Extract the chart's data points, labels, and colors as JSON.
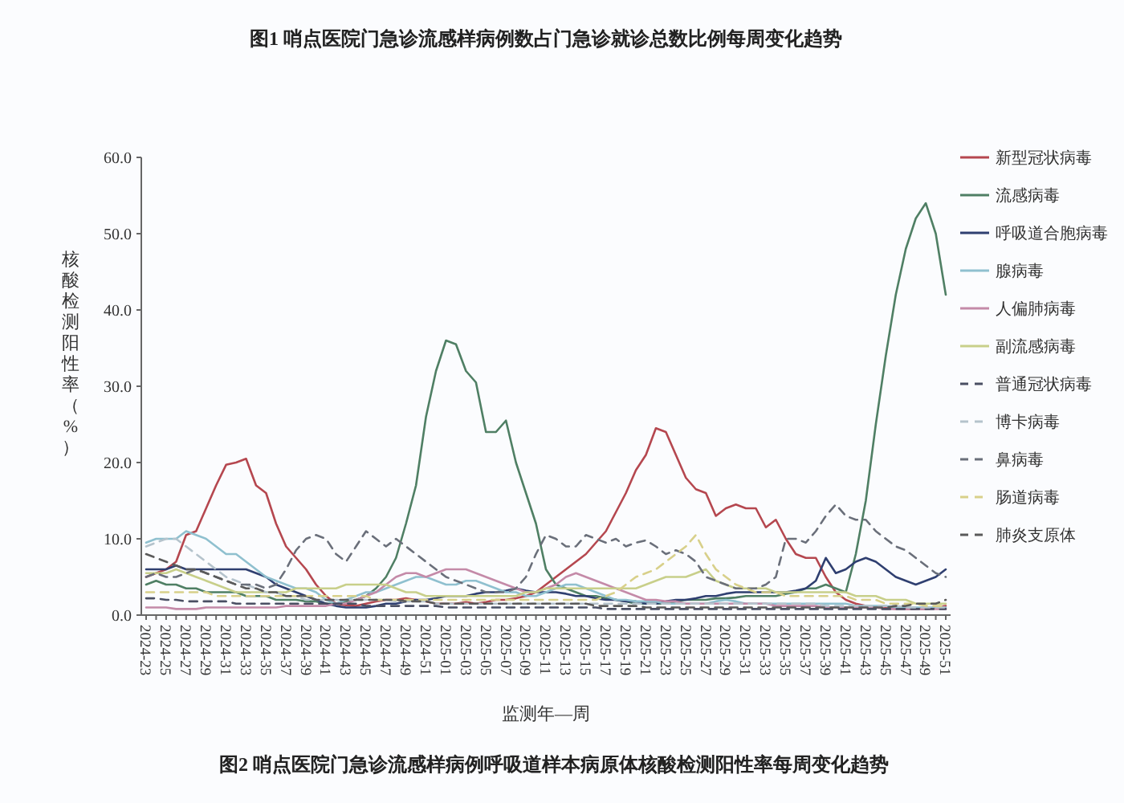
{
  "chart_data": {
    "type": "line",
    "title": "图2 哨点医院门急诊流感样病例呼吸道样本病原体核酸检测阳性率每周变化趋势",
    "annotations": [
      "图1 哨点医院门急诊流感样病例数占门急诊就诊总数比例每周变化趋势"
    ],
    "xlabel": "监测年—周",
    "ylabel": "核酸检测阳性率（%）",
    "categories": [
      "2024-23",
      null,
      "2024-25",
      null,
      "2024-27",
      null,
      "2024-29",
      null,
      "2024-31",
      null,
      "2024-33",
      null,
      "2024-35",
      null,
      "2024-37",
      null,
      "2024-39",
      null,
      "2024-41",
      null,
      "2024-43",
      null,
      "2024-45",
      null,
      "2024-47",
      null,
      "2024-49",
      null,
      "2024-51",
      null,
      "2025-01",
      null,
      "2025-03",
      null,
      "2025-05",
      null,
      "2025-07",
      null,
      "2025-09",
      null,
      "2025-11",
      null,
      "2025-13",
      null,
      "2025-15",
      null,
      "2025-17",
      null,
      "2025-19",
      null,
      "2025-21",
      null,
      "2025-23",
      null,
      "2025-25",
      null,
      "2025-27",
      null,
      "2025-29",
      null,
      "2025-31",
      null,
      "2025-33",
      null,
      "2025-35",
      null,
      "2025-37",
      null,
      "2025-39",
      null,
      "2025-41",
      null,
      "2025-43",
      null,
      "2025-45",
      null,
      "2025-47",
      null,
      "2025-49",
      null,
      "2025-51"
    ],
    "ylim": [
      0,
      60
    ],
    "yticks": [
      {
        "value": 0,
        "label": "0.0"
      },
      {
        "value": 10,
        "label": "10.0"
      },
      {
        "value": 20,
        "label": "20.0"
      },
      {
        "value": 30,
        "label": "30.0"
      },
      {
        "value": 40,
        "label": "40.0"
      },
      {
        "value": 50,
        "label": "50.0"
      },
      {
        "value": 60,
        "label": "60.0"
      }
    ],
    "legend": "right",
    "line_style": "solid",
    "series": [
      {
        "name": "新型冠状病毒",
        "color": "#b5474f",
        "values": [
          5,
          5.5,
          6,
          7,
          10.5,
          11,
          14,
          17,
          19.7,
          20,
          20.5,
          17,
          16,
          12,
          9,
          7.5,
          6,
          4,
          2.5,
          1.5,
          1.3,
          1.2,
          1.5,
          1.8,
          2,
          2,
          2.2,
          2,
          1.8,
          1.5,
          1.5,
          1.5,
          1.7,
          1.5,
          1.7,
          2,
          2,
          2.2,
          2.5,
          3,
          4,
          5,
          6,
          7,
          8,
          9.5,
          11,
          13.5,
          16,
          19,
          21,
          24.5,
          24,
          21,
          18,
          16.5,
          16,
          13,
          14,
          14.5,
          14,
          14,
          11.5,
          12.5,
          10,
          8,
          7.5,
          7.5,
          5,
          3,
          2,
          1.5,
          1.2,
          1,
          1,
          0.8,
          0.8,
          0.8,
          0.8,
          1,
          1.2
        ]
      },
      {
        "name": "流感病毒",
        "color": "#4f7f64",
        "values": [
          4,
          4.5,
          4,
          4,
          3.5,
          3.5,
          3,
          3,
          3,
          3,
          2.5,
          2.5,
          2.5,
          2,
          2,
          2,
          1.8,
          1.8,
          1.5,
          1.5,
          1.8,
          2,
          2.5,
          3.5,
          5,
          7.5,
          12,
          17,
          26,
          32,
          36,
          35.5,
          32,
          30.5,
          24,
          24,
          25.5,
          20,
          16,
          12,
          6,
          4,
          3.5,
          3,
          2.5,
          2.5,
          2.2,
          2,
          1.8,
          1.5,
          1.5,
          1.5,
          1.5,
          1.8,
          2,
          2,
          2,
          2.2,
          2.2,
          2.3,
          2.5,
          2.5,
          2.5,
          2.5,
          2.8,
          3,
          3.5,
          3.5,
          4,
          3.5,
          3,
          8,
          15,
          25,
          34,
          42,
          48,
          52,
          54,
          50,
          42
        ]
      },
      {
        "name": "呼吸道合胞病毒",
        "color": "#2f3f70",
        "values": [
          6,
          6,
          6,
          6.5,
          6,
          6,
          6,
          6,
          6,
          6,
          6,
          5.5,
          5,
          4,
          3.5,
          3,
          2.5,
          2,
          1.5,
          1.2,
          1,
          1,
          1,
          1.2,
          1.5,
          1.5,
          1.8,
          2,
          2,
          2.2,
          2.5,
          2.5,
          2.5,
          2.8,
          3,
          3,
          3.2,
          3.5,
          3.2,
          3,
          3,
          3,
          2.8,
          2.5,
          2.5,
          2.2,
          2,
          2,
          1.8,
          1.8,
          1.5,
          1.5,
          1.8,
          2,
          2,
          2.2,
          2.5,
          2.5,
          2.8,
          3,
          3,
          3,
          3,
          3,
          3,
          3.2,
          3.5,
          4.5,
          7.5,
          5.5,
          6,
          7,
          7.5,
          7,
          6,
          5,
          4.5,
          4,
          4.5,
          5,
          6
        ]
      },
      {
        "name": "腺病毒",
        "color": "#8fc0cf",
        "values": [
          9.5,
          10,
          10,
          10,
          11,
          10.5,
          10,
          9,
          8,
          8,
          7,
          6,
          5,
          4.5,
          4,
          3.5,
          3.5,
          3,
          2,
          1.5,
          2,
          2.5,
          3,
          3,
          3.5,
          4,
          4.5,
          5,
          5,
          4.5,
          4,
          4,
          4.5,
          4.5,
          4,
          3.5,
          3,
          3,
          2.5,
          2.5,
          3,
          3.5,
          4,
          4,
          3.5,
          3,
          2.5,
          2,
          2,
          1.8,
          1.8,
          1.8,
          1.5,
          1.5,
          1.5,
          1.5,
          1.5,
          1.8,
          2,
          1.8,
          1.5,
          1.5,
          1.5,
          1.5,
          1.5,
          1.5,
          1.5,
          1.5,
          1.5,
          1.5,
          1.5,
          1.2,
          1.2,
          1.2,
          1.2,
          1,
          1,
          1,
          1,
          1,
          1
        ]
      },
      {
        "name": "人偏肺病毒",
        "color": "#c48aa8",
        "values": [
          1,
          1,
          1,
          0.8,
          0.8,
          0.8,
          1,
          1,
          1,
          1,
          1,
          1,
          1,
          1,
          1.2,
          1.2,
          1.2,
          1.2,
          1.2,
          1.5,
          1.5,
          2,
          2.5,
          3,
          4,
          5,
          5.5,
          5.5,
          5,
          5.5,
          6,
          6,
          6,
          5.5,
          5,
          4.5,
          4,
          3.5,
          3,
          3,
          3.5,
          4,
          5,
          5.5,
          5,
          4.5,
          4,
          3.5,
          3,
          2.5,
          2,
          2,
          1.8,
          1.8,
          1.5,
          1.5,
          1.5,
          1.5,
          1.5,
          1.5,
          1.5,
          1.5,
          1.5,
          1.2,
          1.2,
          1.2,
          1.2,
          1.2,
          1,
          1,
          1,
          1,
          1,
          1,
          0.8,
          0.8,
          0.8,
          0.8,
          0.8,
          0.8,
          0.8
        ]
      },
      {
        "name": "副流感病毒",
        "color": "#c8cf8a",
        "values": [
          5.5,
          5.5,
          5.5,
          6,
          5.5,
          5,
          4.5,
          4,
          3.5,
          3,
          3,
          3,
          3,
          3,
          3,
          3.5,
          3.5,
          3.5,
          3.5,
          3.5,
          4,
          4,
          4,
          4,
          4,
          3.5,
          3,
          3,
          2.5,
          2.5,
          2.5,
          2.5,
          2.5,
          2.5,
          2.5,
          2.5,
          2.5,
          2.5,
          3,
          3,
          3.5,
          3.5,
          3.5,
          3.5,
          3.5,
          3.5,
          3.5,
          3.5,
          3.5,
          3.5,
          4,
          4.5,
          5,
          5,
          5,
          5.5,
          6,
          4.5,
          4,
          3.5,
          3.5,
          3.5,
          3.5,
          3,
          3,
          3,
          3,
          3,
          3,
          3,
          3,
          2.5,
          2.5,
          2.5,
          2,
          2,
          2,
          1.5,
          1.5,
          1.5,
          1.5
        ]
      },
      {
        "name": "普通冠状病毒",
        "color": "#4a4f63",
        "line_style": "dashed",
        "values": [
          2.2,
          2.2,
          2,
          2,
          1.8,
          1.8,
          1.8,
          1.8,
          1.8,
          1.5,
          1.5,
          1.5,
          1.5,
          1.5,
          1.5,
          1.5,
          1.5,
          1.5,
          1.5,
          1.5,
          1.5,
          1.5,
          1.2,
          1.2,
          1.2,
          1.2,
          1.2,
          1.2,
          1.2,
          1.2,
          1,
          1,
          1,
          1,
          1,
          1,
          1,
          1,
          1,
          1,
          1,
          1,
          1,
          1,
          1,
          1,
          0.8,
          0.8,
          0.8,
          0.8,
          0.8,
          0.8,
          0.8,
          0.8,
          0.8,
          0.8,
          0.8,
          0.8,
          0.8,
          0.8,
          0.8,
          0.8,
          0.8,
          0.8,
          0.8,
          0.8,
          0.8,
          0.8,
          0.8,
          0.8,
          0.8,
          0.8,
          0.8,
          0.8,
          0.8,
          0.8,
          0.8,
          0.8,
          0.8,
          0.8,
          0.8
        ]
      },
      {
        "name": "博卡病毒",
        "color": "#b5c3cc",
        "line_style": "dashed",
        "values": [
          9,
          9.5,
          10,
          10,
          9,
          8,
          7,
          6,
          5,
          4.5,
          4,
          3.5,
          3,
          3,
          2.5,
          2.5,
          2,
          2,
          2,
          2,
          2,
          2,
          2,
          2,
          2,
          1.8,
          1.8,
          1.8,
          1.8,
          1.5,
          1.5,
          1.5,
          1.5,
          1.5,
          1.5,
          1.5,
          1.5,
          1.5,
          1.5,
          1.5,
          1.5,
          1.5,
          1.5,
          1.5,
          1.5,
          1.5,
          1.5,
          1.5,
          1.5,
          1.5,
          1.5,
          1.5,
          1.5,
          1.5,
          1.5,
          1.5,
          1.5,
          1.5,
          1.5,
          1.5,
          1.5,
          1.5,
          1.5,
          1.5,
          1.5,
          1.5,
          1.5,
          1.5,
          1.2,
          1.2,
          1.2,
          1.2,
          1.2,
          1.2,
          1.2,
          1.2,
          1,
          1,
          1,
          1,
          1
        ]
      },
      {
        "name": "鼻病毒",
        "color": "#6a6f7a",
        "line_style": "dashed",
        "values": [
          5,
          5.5,
          5,
          5,
          5.5,
          6,
          5.5,
          5,
          4.5,
          4,
          4,
          4,
          3.5,
          4,
          6,
          8.5,
          10,
          10.5,
          10,
          8,
          7,
          9,
          11,
          10,
          9,
          10,
          9,
          8,
          7,
          6,
          5,
          4.5,
          4,
          3.5,
          3,
          3,
          3,
          3.5,
          5,
          8,
          10.5,
          10,
          9,
          9,
          10.5,
          10,
          9.5,
          10,
          9,
          9.5,
          9.8,
          9,
          8,
          8.5,
          8,
          7,
          5,
          4.5,
          4,
          3.5,
          3.5,
          3.5,
          4,
          5,
          10,
          10,
          9.5,
          11,
          13,
          14.5,
          13,
          12.5,
          12.5,
          11,
          10,
          9,
          8.5,
          7.5,
          6.5,
          5.5,
          5
        ]
      },
      {
        "name": "肠道病毒",
        "color": "#d8d08a",
        "line_style": "dashed",
        "values": [
          3,
          3,
          3,
          3,
          3,
          3,
          3,
          2.5,
          2.5,
          2.5,
          2.5,
          2.5,
          2.5,
          2.5,
          2.5,
          2.5,
          2.5,
          2.5,
          2.5,
          2.5,
          2.5,
          2.5,
          2.5,
          2,
          2,
          2,
          2,
          2,
          2,
          2,
          2,
          2,
          2,
          2,
          2,
          2,
          2,
          2,
          2,
          2,
          2,
          2,
          2,
          2,
          2,
          2,
          2.5,
          3,
          4,
          5,
          5.5,
          6,
          7,
          8,
          9,
          10.5,
          8,
          6,
          5,
          4,
          3.5,
          3,
          3,
          3,
          2.5,
          2.5,
          2.5,
          2.5,
          2.5,
          2.5,
          2.5,
          2,
          2,
          2,
          1.5,
          1.5,
          1.5,
          1.5,
          1.2,
          1.2,
          1.2
        ]
      },
      {
        "name": "肺炎支原体",
        "color": "#5a5a5a",
        "line_style": "dashed",
        "values": [
          8,
          7.5,
          7,
          6.5,
          6,
          6,
          5.5,
          5,
          4.5,
          4,
          3.5,
          3.5,
          3,
          3,
          2.5,
          2.5,
          2.5,
          2,
          2,
          2,
          2,
          2,
          2,
          2,
          2,
          2,
          1.8,
          1.8,
          1.8,
          1.5,
          1.5,
          1.5,
          1.5,
          1.5,
          1.5,
          1.5,
          1.5,
          1.5,
          1.5,
          1.5,
          1.5,
          1.5,
          1.5,
          1.5,
          1.5,
          1.2,
          1.2,
          1.2,
          1.2,
          1.2,
          1,
          1,
          1,
          1,
          1,
          1,
          1,
          1,
          1,
          1,
          1,
          1,
          1,
          1,
          1,
          1,
          1,
          1,
          1,
          1,
          1,
          1,
          1,
          1,
          1,
          1.2,
          1.2,
          1.5,
          1.5,
          1.5,
          2
        ]
      }
    ]
  }
}
